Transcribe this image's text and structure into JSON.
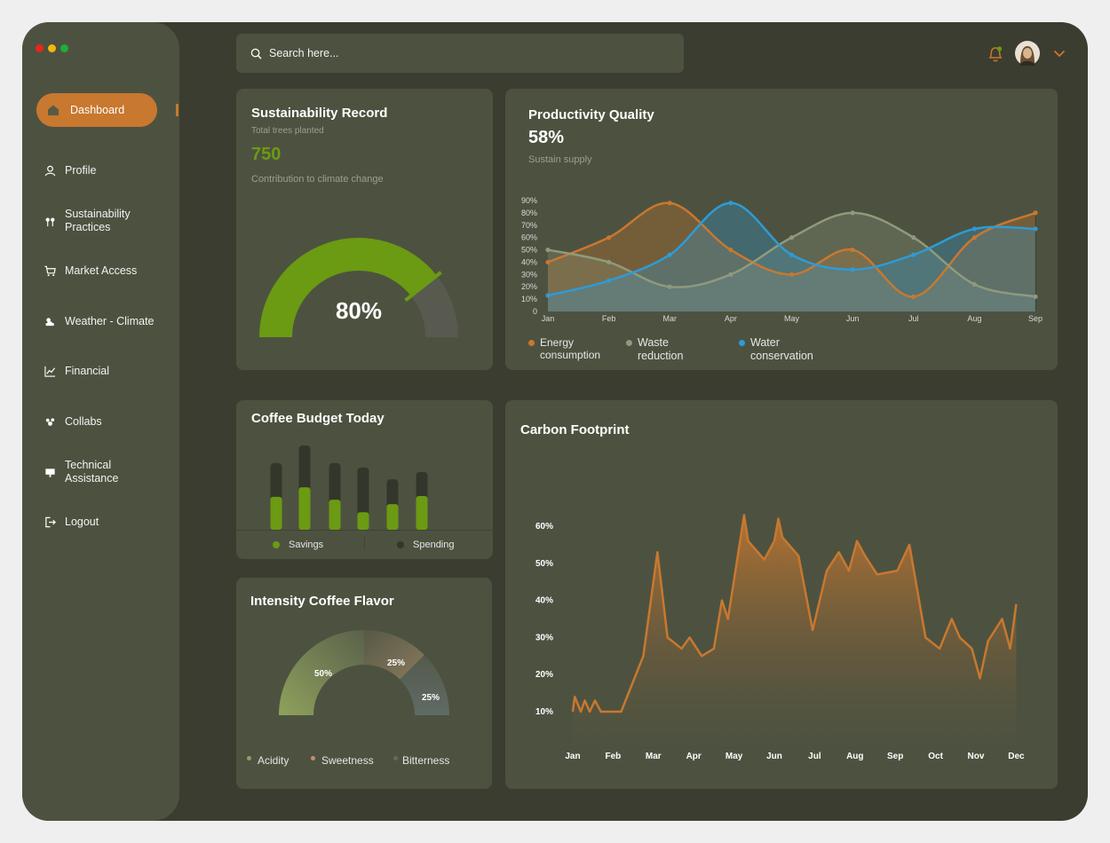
{
  "window_controls": {
    "colors": [
      "#e8261c",
      "#f2b80f",
      "#1fae3a"
    ]
  },
  "sidebar": {
    "active_item": {
      "label": "Dashboard",
      "icon": "home-icon"
    },
    "items": [
      {
        "label": "Profile",
        "icon": "user-icon"
      },
      {
        "label": "Sustainability\nPractices",
        "icon": "plant-icon"
      },
      {
        "label": "Market Access",
        "icon": "cart-icon"
      },
      {
        "label": "Weather - Climate",
        "icon": "weather-icon"
      },
      {
        "label": "Financial",
        "icon": "chart-line-icon"
      },
      {
        "label": "Collabs",
        "icon": "group-icon"
      },
      {
        "label": "Technical\nAssistance",
        "icon": "monitor-icon"
      },
      {
        "label": "Logout",
        "icon": "logout-icon"
      }
    ]
  },
  "search": {
    "placeholder": "Search here..."
  },
  "header": {
    "notification_icon": "bell-icon",
    "avatar_icon": "avatar",
    "menu_icon": "chevron-down-icon"
  },
  "sustainability": {
    "title": "Sustainability Record",
    "subtitle": "Total trees planted",
    "value": "750",
    "caption": "Contribution to climate change",
    "gauge_value": 0.8,
    "gauge_label": "80%"
  },
  "productivity": {
    "title": "Productivity Quality",
    "value": "58%",
    "caption": "Sustain supply",
    "legend": [
      {
        "label": "Energy\nconsumption",
        "color": "#c8782f"
      },
      {
        "label": "Waste\nreduction",
        "color": "#8f9a7c"
      },
      {
        "label": "Water\nconservation",
        "color": "#2e9bd6"
      }
    ]
  },
  "budget": {
    "title": "Coffee Budget Today",
    "legend": [
      {
        "label": "Savings",
        "color": "#6b9a13"
      },
      {
        "label": "Spending",
        "color": "#33362a"
      }
    ]
  },
  "flavor": {
    "title": "Intensity Coffee Flavor",
    "legend": [
      {
        "label": "Acidity",
        "color": "#8fa15c"
      },
      {
        "label": "Sweetness",
        "color": "#c0916a"
      },
      {
        "label": "Bitterness",
        "color": "#5f6b66"
      }
    ]
  },
  "carbon": {
    "title": "Carbon Footprint"
  },
  "chart_data": [
    {
      "type": "line",
      "title": "Productivity Quality",
      "x": [
        "Jan",
        "Feb",
        "Mar",
        "Apr",
        "May",
        "Jun",
        "Jul",
        "Aug",
        "Sep"
      ],
      "ylim": [
        0,
        90
      ],
      "yticks": [
        "0",
        "10%",
        "20%",
        "30%",
        "40%",
        "50%",
        "60%",
        "70%",
        "80%",
        "90%"
      ],
      "series": [
        {
          "name": "Energy consumption",
          "color": "#c8782f",
          "values": [
            40,
            60,
            88,
            50,
            30,
            50,
            12,
            60,
            80
          ]
        },
        {
          "name": "Waste reduction",
          "color": "#8f9a7c",
          "values": [
            50,
            40,
            20,
            30,
            60,
            80,
            60,
            22,
            12
          ]
        },
        {
          "name": "Water conservation",
          "color": "#2e9bd6",
          "values": [
            13,
            25,
            46,
            88,
            46,
            34,
            46,
            67,
            67
          ]
        }
      ]
    },
    {
      "type": "bar",
      "title": "Coffee Budget Today",
      "series": [
        {
          "name": "Savings",
          "color": "#6b9a13",
          "values": [
            4.5,
            5.8,
            4.1,
            2.4,
            3.5,
            4.6
          ]
        },
        {
          "name": "Spending",
          "color": "#33362a",
          "values": [
            9.1,
            11.5,
            9.1,
            8.5,
            6.9,
            7.9
          ]
        }
      ]
    },
    {
      "type": "pie",
      "title": "Intensity Coffee Flavor",
      "slices": [
        {
          "name": "Acidity",
          "value": 50,
          "label": "50%",
          "color": "#8fa15c"
        },
        {
          "name": "Sweetness",
          "value": 25,
          "label": "25%",
          "color": "#8a7a5d"
        },
        {
          "name": "Bitterness",
          "value": 25,
          "label": "25%",
          "color": "#5f6b66"
        }
      ]
    },
    {
      "type": "area",
      "title": "Carbon Footprint",
      "xticks": [
        "Jan",
        "Feb",
        "Mar",
        "Apr",
        "May",
        "Jun",
        "Jul",
        "Aug",
        "Sep",
        "Oct",
        "Nov",
        "Dec"
      ],
      "xlim": [
        0,
        11.3
      ],
      "ylim": [
        0,
        70
      ],
      "yticks": [
        "10%",
        "20%",
        "30%",
        "40%",
        "50%",
        "60%"
      ],
      "color": "#c8782f",
      "points": [
        [
          0,
          10
        ],
        [
          0.05,
          14
        ],
        [
          0.2,
          10
        ],
        [
          0.3,
          13
        ],
        [
          0.42,
          10
        ],
        [
          0.55,
          13
        ],
        [
          0.7,
          10
        ],
        [
          1.2,
          10
        ],
        [
          1.75,
          25
        ],
        [
          2.1,
          53
        ],
        [
          2.35,
          30
        ],
        [
          2.7,
          27
        ],
        [
          2.9,
          30
        ],
        [
          3.2,
          25
        ],
        [
          3.5,
          27
        ],
        [
          3.7,
          40
        ],
        [
          3.85,
          35
        ],
        [
          4.25,
          63
        ],
        [
          4.35,
          56
        ],
        [
          4.75,
          51
        ],
        [
          5.0,
          56
        ],
        [
          5.1,
          62
        ],
        [
          5.2,
          57
        ],
        [
          5.6,
          52
        ],
        [
          5.95,
          32
        ],
        [
          6.3,
          48
        ],
        [
          6.6,
          53
        ],
        [
          6.85,
          48
        ],
        [
          7.05,
          56
        ],
        [
          7.25,
          52
        ],
        [
          7.55,
          47
        ],
        [
          8.05,
          48
        ],
        [
          8.35,
          55
        ],
        [
          8.75,
          30
        ],
        [
          9.1,
          27
        ],
        [
          9.4,
          35
        ],
        [
          9.6,
          30
        ],
        [
          9.9,
          27
        ],
        [
          10.1,
          19
        ],
        [
          10.3,
          29
        ],
        [
          10.65,
          35
        ],
        [
          10.85,
          27
        ],
        [
          11.0,
          39
        ]
      ]
    }
  ]
}
